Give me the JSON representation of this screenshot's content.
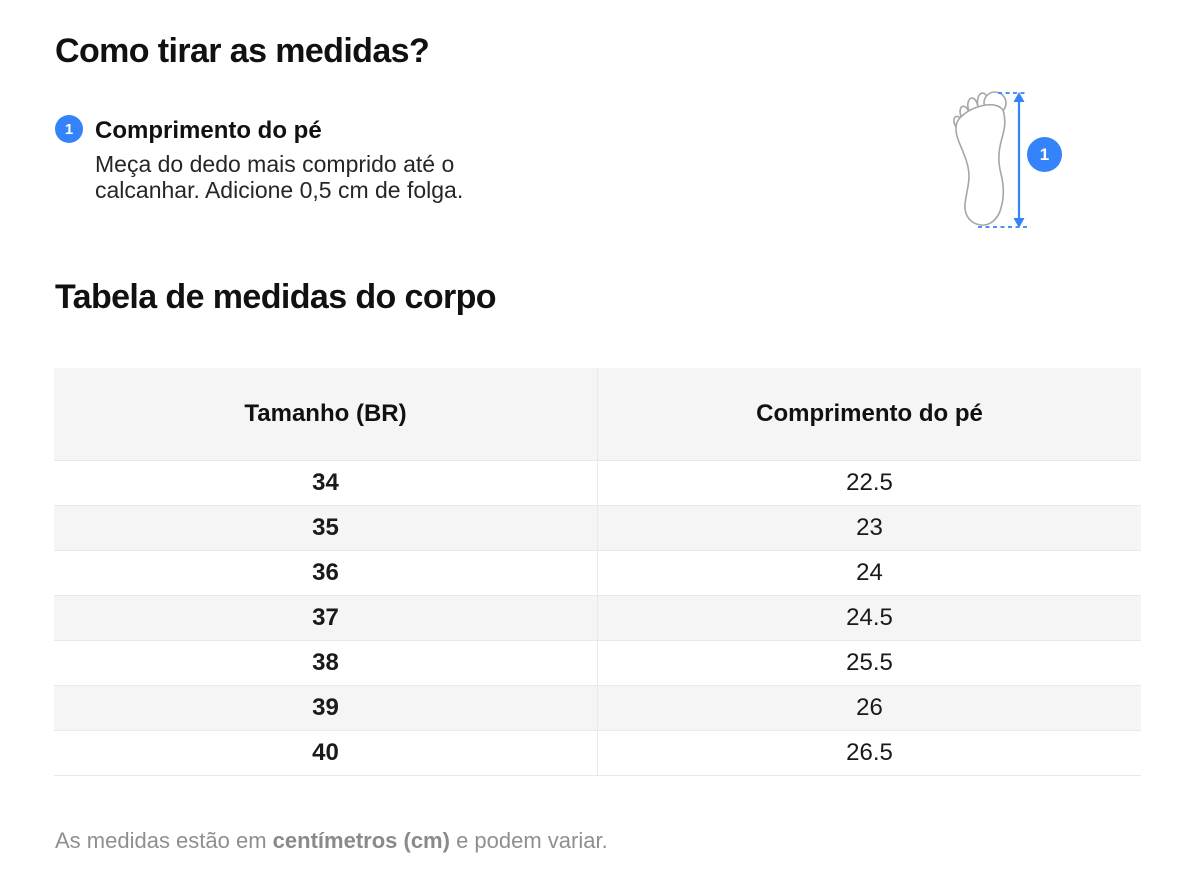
{
  "page": {
    "title": "Como tirar as medidas?",
    "section_title": "Tabela de medidas do corpo",
    "footer": {
      "prefix": "As medidas estão em ",
      "bold": "centímetros (cm)",
      "suffix": " e podem variar."
    }
  },
  "measure_step": {
    "number": "1",
    "label": "Comprimento do pé",
    "description": "Meça do dedo mais comprido até o calcanhar. Adicione 0,5 cm de folga."
  },
  "illustration": {
    "badge_label": "1",
    "icon": "foot-outline-with-length-arrow"
  },
  "size_table": {
    "columns": [
      "Tamanho (BR)",
      "Comprimento do pé"
    ],
    "rows": [
      [
        "34",
        "22.5"
      ],
      [
        "35",
        "23"
      ],
      [
        "36",
        "24"
      ],
      [
        "37",
        "24.5"
      ],
      [
        "38",
        "25.5"
      ],
      [
        "39",
        "26"
      ],
      [
        "40",
        "26.5"
      ]
    ]
  },
  "colors": {
    "accent_blue": "#3483fa",
    "row_stripe": "#f5f5f5",
    "table_border": "#e9e9e9",
    "footer_text": "#8f8f8f",
    "foot_outline": "#a6a6a6",
    "text": "#1a1a1a"
  }
}
